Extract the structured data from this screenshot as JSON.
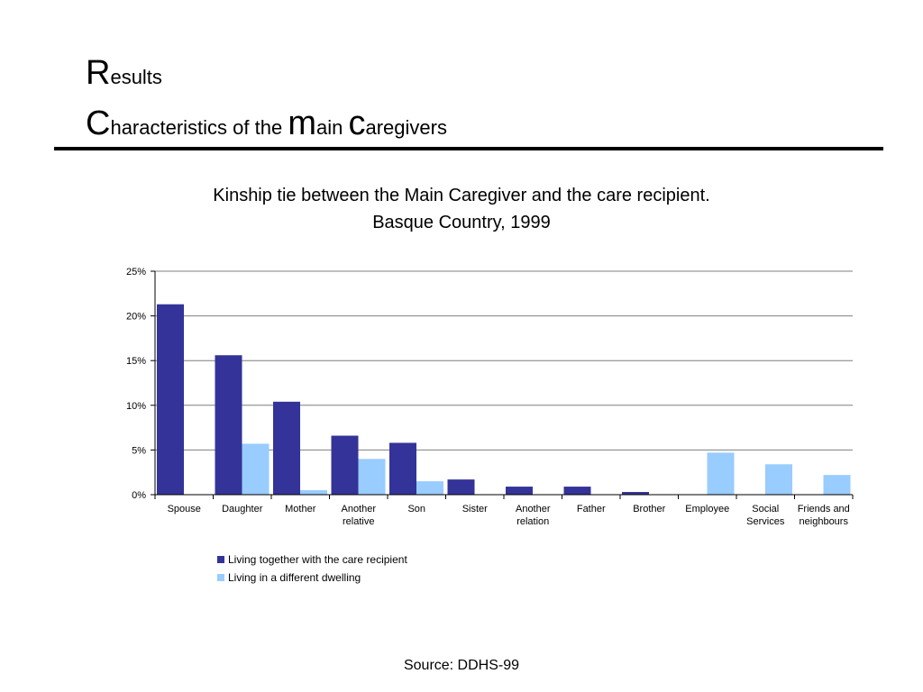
{
  "header": {
    "line1": {
      "first": "R",
      "rest": "esults"
    },
    "line2": {
      "parts": [
        {
          "text": "C",
          "size": "big"
        },
        {
          "text": "haracteristics of the ",
          "size": "small"
        },
        {
          "text": "m",
          "size": "big"
        },
        {
          "text": "ain ",
          "size": "small"
        },
        {
          "text": "c",
          "size": "big"
        },
        {
          "text": "aregivers",
          "size": "small"
        }
      ]
    }
  },
  "chart_data": {
    "type": "bar",
    "title_line1": "Kinship tie between the Main Caregiver and the care recipient.",
    "title_line2": "Basque Country, 1999",
    "categories": [
      [
        "Spouse"
      ],
      [
        "Daughter"
      ],
      [
        "Mother"
      ],
      [
        "Another",
        "relative"
      ],
      [
        "Son"
      ],
      [
        "Sister"
      ],
      [
        "Another",
        "relation"
      ],
      [
        "Father"
      ],
      [
        "Brother"
      ],
      [
        "Employee"
      ],
      [
        "Social",
        "Services"
      ],
      [
        "Friends and",
        "neighbours"
      ]
    ],
    "series": [
      {
        "name": "Living together with the care recipient",
        "color": "#333399",
        "values": [
          21.3,
          15.6,
          10.4,
          6.6,
          5.8,
          1.7,
          0.9,
          0.9,
          0.3,
          0,
          0,
          0
        ]
      },
      {
        "name": "Living in a different dwelling",
        "color": "#99ccff",
        "values": [
          0,
          5.7,
          0.5,
          4.0,
          1.5,
          0,
          0,
          0,
          0,
          4.7,
          3.4,
          2.2
        ]
      }
    ],
    "yticks": [
      "0%",
      "5%",
      "10%",
      "15%",
      "20%",
      "25%"
    ],
    "ylim": [
      0,
      25
    ],
    "grid": true,
    "legend_position": "bottom-left"
  },
  "footer": {
    "source": "Source: DDHS-99"
  }
}
